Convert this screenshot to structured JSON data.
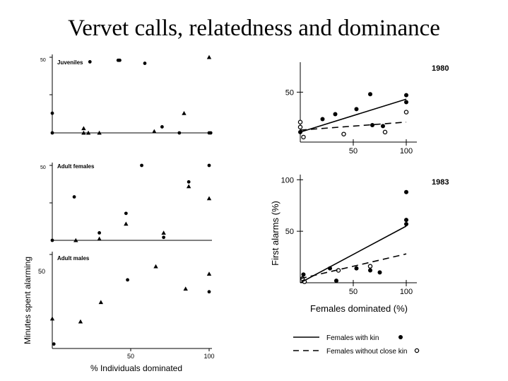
{
  "title": "Vervet calls, relatedness and dominance",
  "chart_data": [
    {
      "type": "scatter",
      "panel": "Juveniles",
      "y_tick_top": "50",
      "xlim": [
        0,
        100
      ],
      "ylim": [
        0,
        50
      ],
      "series": [
        {
          "marker": "circle",
          "points": [
            [
              0,
              13
            ],
            [
              0,
              0
            ],
            [
              24,
              47
            ],
            [
              42,
              48
            ],
            [
              43,
              48
            ],
            [
              59,
              46
            ],
            [
              70,
              4
            ],
            [
              81,
              0
            ],
            [
              100,
              0
            ],
            [
              101,
              0
            ]
          ]
        },
        {
          "marker": "triangle",
          "points": [
            [
              20,
              3
            ],
            [
              20,
              0
            ],
            [
              23,
              0
            ],
            [
              30,
              0
            ],
            [
              65,
              1
            ],
            [
              84,
              13
            ],
            [
              100,
              50
            ]
          ]
        }
      ]
    },
    {
      "type": "scatter",
      "panel": "Adult females",
      "y_tick_top": "50",
      "xlim": [
        0,
        100
      ],
      "ylim": [
        0,
        50
      ],
      "series": [
        {
          "marker": "circle",
          "points": [
            [
              0,
              0
            ],
            [
              14,
              29
            ],
            [
              30,
              5
            ],
            [
              47,
              18
            ],
            [
              57,
              50
            ],
            [
              71,
              2
            ],
            [
              87,
              39
            ],
            [
              100,
              50
            ]
          ]
        },
        {
          "marker": "triangle",
          "points": [
            [
              15,
              0
            ],
            [
              30,
              1
            ],
            [
              47,
              11
            ],
            [
              71,
              5
            ],
            [
              87,
              36
            ],
            [
              100,
              28
            ]
          ]
        }
      ]
    },
    {
      "type": "scatter",
      "panel": "Adult males",
      "y_tick_top": "50",
      "ylabel": "Minutes spent alarming",
      "xlabel": "% Individuals dominated",
      "x_ticks": [
        "50",
        "100"
      ],
      "xlim": [
        0,
        100
      ],
      "ylim": [
        0,
        63
      ],
      "series": [
        {
          "marker": "circle",
          "points": [
            [
              1,
              3
            ],
            [
              48,
              46
            ],
            [
              100,
              38
            ]
          ]
        },
        {
          "marker": "triangle",
          "points": [
            [
              0,
              20
            ],
            [
              18,
              18
            ],
            [
              31,
              31
            ],
            [
              66,
              55
            ],
            [
              85,
              40
            ],
            [
              100,
              50
            ]
          ]
        }
      ]
    },
    {
      "type": "scatter",
      "panel": "1980",
      "y_ticks": [
        "50"
      ],
      "x_ticks": [
        "50",
        "100"
      ],
      "xlim": [
        0,
        100
      ],
      "ylim": [
        0,
        80
      ],
      "series": [
        {
          "marker": "filled-circle",
          "points": [
            [
              0,
              10
            ],
            [
              21,
              23
            ],
            [
              33,
              28
            ],
            [
              53,
              33
            ],
            [
              66,
              48
            ],
            [
              68,
              17
            ],
            [
              78,
              16
            ],
            [
              100,
              47
            ],
            [
              100,
              40
            ]
          ]
        },
        {
          "marker": "open-circle",
          "points": [
            [
              0,
              15
            ],
            [
              0,
              20
            ],
            [
              3,
              5
            ],
            [
              41,
              8
            ],
            [
              80,
              10
            ],
            [
              100,
              30
            ]
          ]
        },
        {
          "line": "solid",
          "points": [
            [
              0,
              10
            ],
            [
              100,
              43
            ]
          ]
        },
        {
          "line": "dashed",
          "points": [
            [
              0,
              12
            ],
            [
              100,
              20
            ]
          ]
        }
      ]
    },
    {
      "type": "scatter",
      "panel": "1983",
      "ylabel": "First alarms (%)",
      "xlabel": "Females dominated (%)",
      "y_ticks": [
        "100",
        "50"
      ],
      "x_ticks": [
        "50",
        "100"
      ],
      "xlim": [
        0,
        100
      ],
      "ylim": [
        0,
        105
      ],
      "series": [
        {
          "marker": "filled-circle",
          "points": [
            [
              3,
              8
            ],
            [
              28,
              14
            ],
            [
              34,
              2
            ],
            [
              53,
              14
            ],
            [
              66,
              12
            ],
            [
              75,
              10
            ],
            [
              100,
              88
            ],
            [
              100,
              61
            ],
            [
              100,
              57
            ]
          ]
        },
        {
          "marker": "open-circle",
          "points": [
            [
              2,
              4
            ],
            [
              4,
              1
            ],
            [
              36,
              12
            ],
            [
              66,
              16
            ]
          ]
        },
        {
          "line": "solid",
          "points": [
            [
              0,
              0
            ],
            [
              100,
              55
            ]
          ]
        },
        {
          "line": "dashed",
          "points": [
            [
              0,
              4
            ],
            [
              100,
              28
            ]
          ]
        }
      ],
      "legend": [
        {
          "label": "Females with kin",
          "line": "solid",
          "marker": "filled-circle"
        },
        {
          "label": "Females without close kin",
          "line": "dashed",
          "marker": "open-circle"
        }
      ]
    }
  ]
}
